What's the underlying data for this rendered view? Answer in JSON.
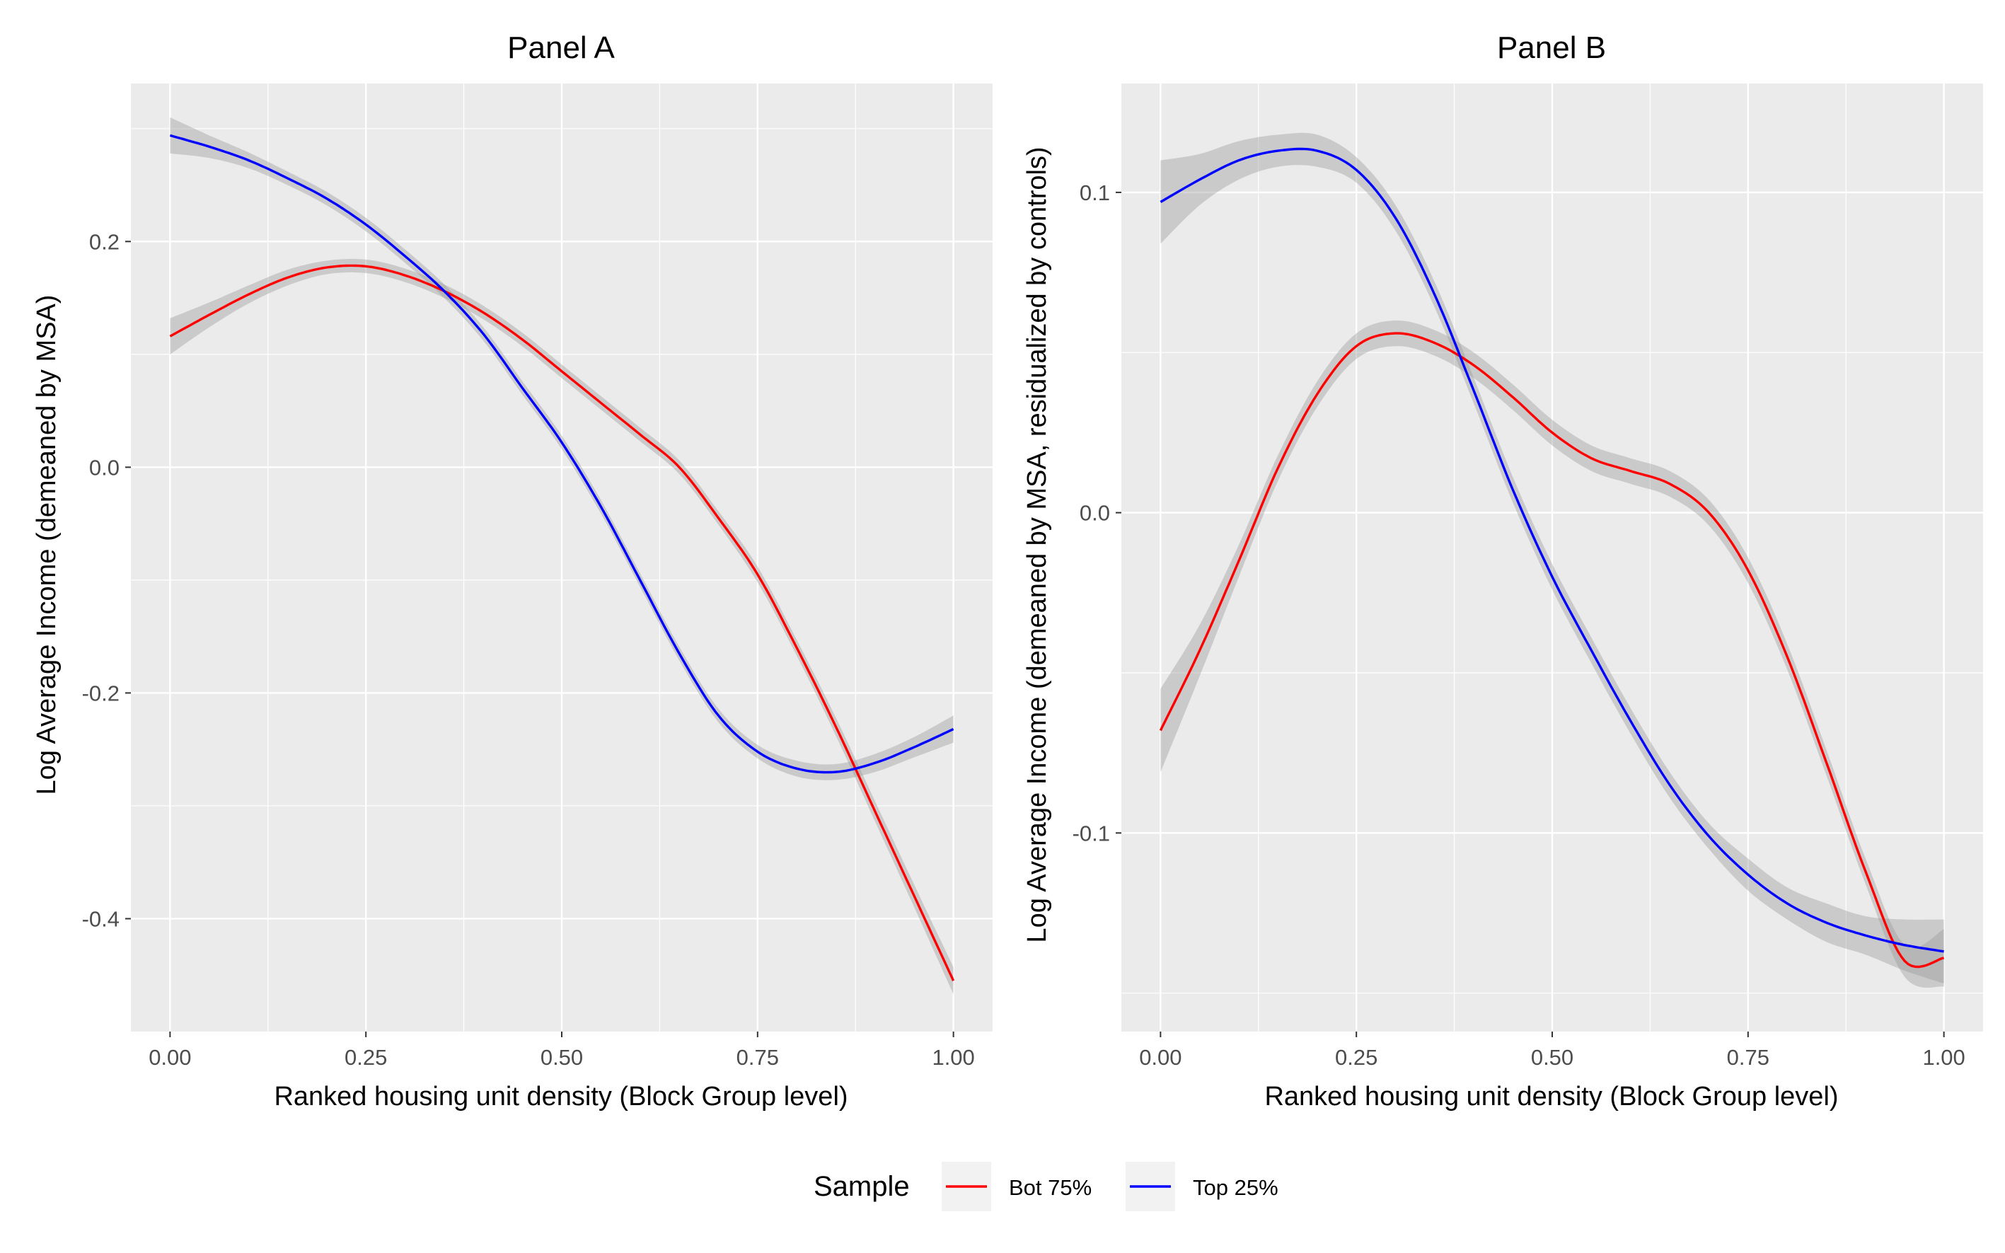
{
  "chart_data": [
    {
      "type": "line",
      "title": "Panel A",
      "xlabel": "Ranked housing unit density (Block Group level)",
      "ylabel": "Log Average Income (demeaned by MSA)",
      "xlim": [
        -0.05,
        1.05
      ],
      "ylim": [
        -0.5,
        0.34
      ],
      "xticks": [
        0.0,
        0.25,
        0.5,
        0.75,
        1.0
      ],
      "xtick_labels": [
        "0.00",
        "0.25",
        "0.50",
        "0.75",
        "1.00"
      ],
      "yticks": [
        -0.4,
        -0.2,
        0.0,
        0.2
      ],
      "ytick_labels": [
        "-0.4",
        "-0.2",
        "0.0",
        "0.2"
      ],
      "grid": true,
      "series": [
        {
          "name": "Bot 75%",
          "color": "#ff0000",
          "x": [
            0.0,
            0.05,
            0.1,
            0.15,
            0.2,
            0.25,
            0.3,
            0.35,
            0.4,
            0.45,
            0.5,
            0.55,
            0.6,
            0.65,
            0.7,
            0.75,
            0.8,
            0.85,
            0.9,
            0.95,
            1.0
          ],
          "y": [
            0.116,
            0.135,
            0.153,
            0.168,
            0.177,
            0.178,
            0.17,
            0.156,
            0.137,
            0.113,
            0.085,
            0.057,
            0.029,
            0.0,
            -0.045,
            -0.095,
            -0.16,
            -0.23,
            -0.305,
            -0.38,
            -0.455
          ],
          "ci_halfwidth": [
            0.016,
            0.011,
            0.008,
            0.007,
            0.006,
            0.006,
            0.006,
            0.006,
            0.006,
            0.006,
            0.006,
            0.006,
            0.006,
            0.006,
            0.006,
            0.007,
            0.007,
            0.008,
            0.009,
            0.01,
            0.012
          ]
        },
        {
          "name": "Top 25%",
          "color": "#0000ff",
          "x": [
            0.0,
            0.05,
            0.1,
            0.15,
            0.2,
            0.25,
            0.3,
            0.35,
            0.4,
            0.45,
            0.5,
            0.55,
            0.6,
            0.65,
            0.7,
            0.75,
            0.8,
            0.85,
            0.9,
            0.95,
            1.0
          ],
          "y": [
            0.294,
            0.284,
            0.272,
            0.256,
            0.238,
            0.215,
            0.187,
            0.156,
            0.118,
            0.07,
            0.022,
            -0.035,
            -0.1,
            -0.165,
            -0.22,
            -0.252,
            -0.267,
            -0.27,
            -0.262,
            -0.248,
            -0.232
          ],
          "ci_halfwidth": [
            0.016,
            0.01,
            0.007,
            0.006,
            0.006,
            0.006,
            0.006,
            0.006,
            0.006,
            0.006,
            0.006,
            0.006,
            0.006,
            0.006,
            0.006,
            0.006,
            0.007,
            0.007,
            0.008,
            0.009,
            0.012
          ]
        }
      ]
    },
    {
      "type": "line",
      "title": "Panel B",
      "xlabel": "Ranked housing unit density (Block Group level)",
      "ylabel": "Log Average Income (demeaned by MSA, residualized by controls)",
      "xlim": [
        -0.05,
        1.05
      ],
      "ylim": [
        -0.162,
        0.134
      ],
      "xticks": [
        0.0,
        0.25,
        0.5,
        0.75,
        1.0
      ],
      "xtick_labels": [
        "0.00",
        "0.25",
        "0.50",
        "0.75",
        "1.00"
      ],
      "yticks": [
        -0.1,
        0.0,
        0.1
      ],
      "ytick_labels": [
        "-0.1",
        "0.0",
        "0.1"
      ],
      "grid": true,
      "series": [
        {
          "name": "Bot 75%",
          "color": "#ff0000",
          "x": [
            0.0,
            0.05,
            0.1,
            0.15,
            0.2,
            0.25,
            0.3,
            0.35,
            0.4,
            0.45,
            0.5,
            0.55,
            0.6,
            0.65,
            0.7,
            0.75,
            0.8,
            0.85,
            0.9,
            0.95,
            1.0
          ],
          "y": [
            -0.068,
            -0.043,
            -0.015,
            0.014,
            0.037,
            0.052,
            0.056,
            0.053,
            0.046,
            0.036,
            0.025,
            0.017,
            0.013,
            0.009,
            0.0,
            -0.018,
            -0.045,
            -0.078,
            -0.112,
            -0.14,
            -0.139
          ],
          "ci_halfwidth": [
            0.013,
            0.008,
            0.005,
            0.004,
            0.004,
            0.004,
            0.004,
            0.004,
            0.004,
            0.004,
            0.004,
            0.004,
            0.004,
            0.004,
            0.004,
            0.004,
            0.004,
            0.004,
            0.004,
            0.005,
            0.009
          ]
        },
        {
          "name": "Top 25%",
          "color": "#0000ff",
          "x": [
            0.0,
            0.05,
            0.1,
            0.15,
            0.2,
            0.25,
            0.3,
            0.35,
            0.4,
            0.45,
            0.5,
            0.55,
            0.6,
            0.65,
            0.7,
            0.75,
            0.8,
            0.85,
            0.9,
            0.95,
            1.0
          ],
          "y": [
            0.097,
            0.104,
            0.11,
            0.113,
            0.113,
            0.107,
            0.092,
            0.068,
            0.038,
            0.007,
            -0.02,
            -0.043,
            -0.065,
            -0.085,
            -0.101,
            -0.113,
            -0.122,
            -0.128,
            -0.132,
            -0.135,
            -0.137
          ],
          "ci_halfwidth": [
            0.013,
            0.008,
            0.006,
            0.005,
            0.005,
            0.004,
            0.004,
            0.004,
            0.004,
            0.004,
            0.004,
            0.004,
            0.004,
            0.004,
            0.004,
            0.005,
            0.005,
            0.006,
            0.006,
            0.008,
            0.01
          ]
        }
      ]
    }
  ],
  "legend": {
    "title": "Sample",
    "position": "bottom",
    "items": [
      {
        "label": "Bot 75%",
        "color": "#ff0000"
      },
      {
        "label": "Top 25%",
        "color": "#0000ff"
      }
    ]
  },
  "colors": {
    "panel_background": "#ebebeb",
    "grid_major": "#ffffff",
    "ribbon": "#999999"
  }
}
